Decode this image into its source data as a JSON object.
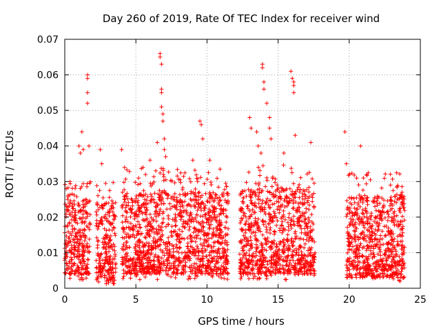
{
  "chart_data": {
    "type": "scatter",
    "title": "Day 260 of 2019, Rate Of TEC Index for receiver wind",
    "xlabel": "GPS time / hours",
    "ylabel": "ROTI / TECUs",
    "xlim": [
      0,
      25
    ],
    "ylim": [
      0,
      0.07
    ],
    "xticks": [
      0,
      5,
      10,
      15,
      20,
      25
    ],
    "xtick_labels": [
      "0",
      "5",
      "10",
      "15",
      "20",
      "25"
    ],
    "yticks": [
      0,
      0.01,
      0.02,
      0.03,
      0.04,
      0.05,
      0.06,
      0.07
    ],
    "ytick_labels": [
      "0",
      "0.01",
      "0.02",
      "0.03",
      "0.04",
      "0.05",
      "0.06",
      "0.07"
    ],
    "grid": true,
    "marker": "plus",
    "color": "#ff0000",
    "series": [
      {
        "name": "ROTI",
        "segments": [
          {
            "x_range": [
              0.0,
              0.5
            ],
            "typical": [
              0.004,
              0.024
            ]
          },
          {
            "x_range": [
              0.5,
              1.8
            ],
            "typical": [
              0.004,
              0.025
            ]
          },
          {
            "x_range": [
              2.2,
              3.6
            ],
            "typical": [
              0.002,
              0.024
            ]
          },
          {
            "x_range": [
              4.0,
              11.5
            ],
            "typical": [
              0.004,
              0.027
            ]
          },
          {
            "x_range": [
              12.3,
              17.6
            ],
            "typical": [
              0.004,
              0.028
            ]
          },
          {
            "x_range": [
              19.8,
              23.9
            ],
            "typical": [
              0.003,
              0.026
            ]
          }
        ],
        "x": [
          0.1,
          0.2,
          0.4,
          1.0,
          1.1,
          1.2,
          1.3,
          1.6,
          1.6,
          1.6,
          1.6,
          1.7,
          2.5,
          2.6,
          4.0,
          4.2,
          5.5,
          6.0,
          6.4,
          6.5,
          6.7,
          6.7,
          6.8,
          6.8,
          6.8,
          6.8,
          6.9,
          6.9,
          7.0,
          7.0,
          7.1,
          9.0,
          9.5,
          9.6,
          9.7,
          10.2,
          13.0,
          13.1,
          13.5,
          13.6,
          13.8,
          13.9,
          13.9,
          14.0,
          14.0,
          14.2,
          14.4,
          14.4,
          14.5,
          15.4,
          15.9,
          16.0,
          16.1,
          16.1,
          16.1,
          16.2,
          17.3,
          19.7,
          19.8,
          20.8,
          21.0
        ],
        "y": [
          0.028,
          0.025,
          0.024,
          0.04,
          0.038,
          0.044,
          0.039,
          0.06,
          0.059,
          0.055,
          0.052,
          0.04,
          0.039,
          0.035,
          0.039,
          0.034,
          0.034,
          0.036,
          0.033,
          0.041,
          0.066,
          0.065,
          0.063,
          0.056,
          0.055,
          0.051,
          0.049,
          0.047,
          0.042,
          0.039,
          0.037,
          0.036,
          0.047,
          0.046,
          0.042,
          0.036,
          0.048,
          0.045,
          0.044,
          0.04,
          0.038,
          0.063,
          0.062,
          0.058,
          0.056,
          0.052,
          0.048,
          0.045,
          0.042,
          0.038,
          0.061,
          0.059,
          0.058,
          0.057,
          0.055,
          0.043,
          0.041,
          0.044,
          0.035,
          0.04,
          0.031
        ]
      }
    ]
  }
}
